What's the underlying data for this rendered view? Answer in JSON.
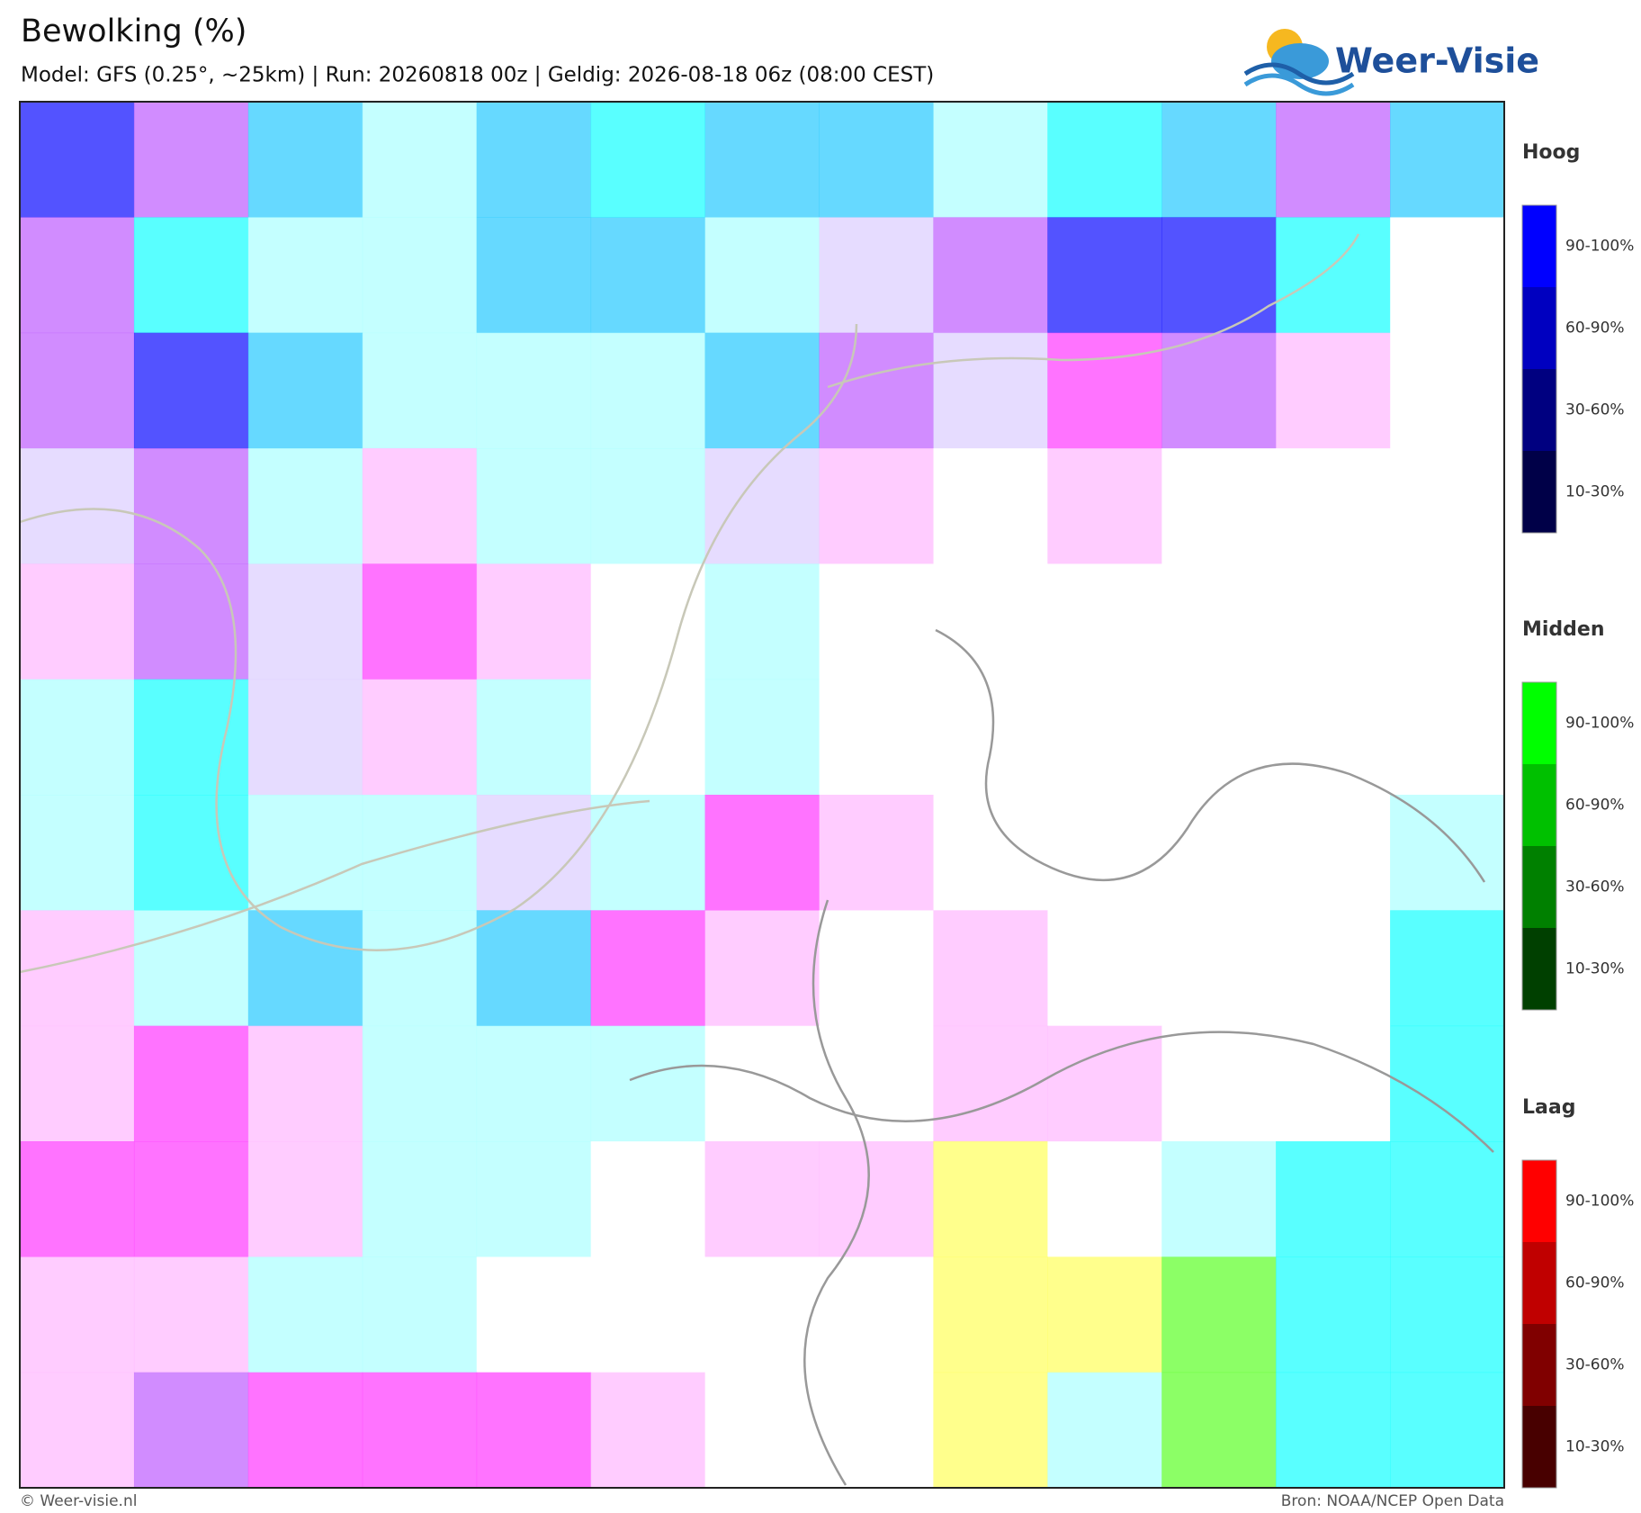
{
  "header": {
    "title": "Bewolking (%)",
    "subtitle": "Model: GFS (0.25°, ~25km)  |  Run: 20260818 00z  |  Geldig: 2026-08-18 06z (08:00 CEST)",
    "logo": "Weer-Visie"
  },
  "legend": [
    {
      "title": "Hoog",
      "items": [
        "90-100%",
        "60-90%",
        "30-60%",
        "10-30%"
      ]
    },
    {
      "title": "Midden",
      "items": [
        "90-100%",
        "60-90%",
        "30-60%",
        "10-30%"
      ]
    },
    {
      "title": "Laag",
      "items": [
        "90-100%",
        "60-90%",
        "30-60%",
        "10-30%"
      ]
    }
  ],
  "footer": {
    "copyright": "© Weer-visie.nl",
    "source": "Bron: NOAA/NCEP Open Data"
  }
}
